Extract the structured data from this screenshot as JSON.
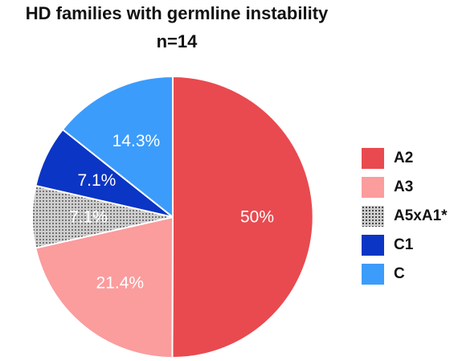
{
  "chart_data": {
    "type": "pie",
    "title": "HD families with germline instability",
    "subtitle": "n=14",
    "slices": [
      {
        "label": "A2",
        "value": 50.0,
        "display": "50%",
        "color": "#e84a4f",
        "pattern": "solid"
      },
      {
        "label": "A3",
        "value": 21.4,
        "display": "21.4%",
        "color": "#fb9c9d",
        "pattern": "solid"
      },
      {
        "label": "A5xA1*",
        "value": 7.1,
        "display": "7.1%",
        "color": "#cfcfcf",
        "pattern": "dotted"
      },
      {
        "label": "C1",
        "value": 7.1,
        "display": "7.1%",
        "color": "#0b35c4",
        "pattern": "solid"
      },
      {
        "label": "C",
        "value": 14.3,
        "display": "14.3%",
        "color": "#3c9cfb",
        "pattern": "solid"
      }
    ],
    "legend_position": "right",
    "start_angle_deg": 0,
    "direction": "clockwise"
  }
}
